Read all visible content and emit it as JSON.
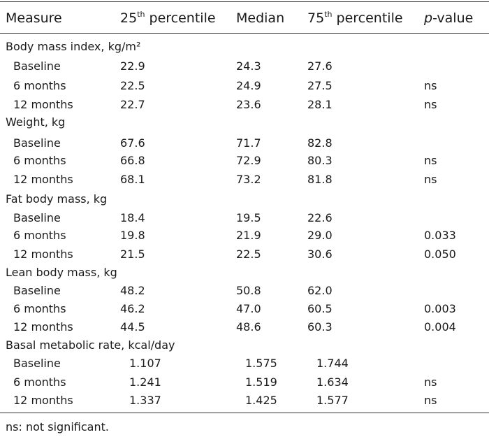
{
  "header": {
    "measure": "Measure",
    "p25_prefix": "25",
    "p25_sup": "th",
    "p25_suffix": " percentile",
    "median": "Median",
    "p75_prefix": "75",
    "p75_sup": "th",
    "p75_suffix": " percentile",
    "pvalue_italic": "p",
    "pvalue_suffix": "-value"
  },
  "groups": [
    {
      "title": "Body mass index, kg/m²",
      "rows": [
        {
          "label": "Baseline",
          "p25": "22.9",
          "median": "24.3",
          "p75": "27.6",
          "p": ""
        },
        {
          "label": "6 months",
          "p25": "22.5",
          "median": "24.9",
          "p75": "27.5",
          "p": "ns"
        },
        {
          "label": "12 months",
          "p25": "22.7",
          "median": "23.6",
          "p75": "28.1",
          "p": "ns"
        }
      ]
    },
    {
      "title": "Weight, kg",
      "rows": [
        {
          "label": "Baseline",
          "p25": "67.6",
          "median": "71.7",
          "p75": "82.8",
          "p": ""
        },
        {
          "label": "6 months",
          "p25": "66.8",
          "median": "72.9",
          "p75": "80.3",
          "p": "ns"
        },
        {
          "label": "12 months",
          "p25": "68.1",
          "median": "73.2",
          "p75": "81.8",
          "p": "ns"
        }
      ]
    },
    {
      "title": "Fat body mass, kg",
      "rows": [
        {
          "label": "Baseline",
          "p25": "18.4",
          "median": "19.5",
          "p75": "22.6",
          "p": ""
        },
        {
          "label": "6 months",
          "p25": "19.8",
          "median": "21.9",
          "p75": "29.0",
          "p": "0.033"
        },
        {
          "label": "12 months",
          "p25": "21.5",
          "median": "22.5",
          "p75": "30.6",
          "p": "0.050"
        }
      ]
    },
    {
      "title": "Lean body mass, kg",
      "rows": [
        {
          "label": "Baseline",
          "p25": "48.2",
          "median": "50.8",
          "p75": "62.0",
          "p": ""
        },
        {
          "label": "6 months",
          "p25": "46.2",
          "median": "47.0",
          "p75": "60.5",
          "p": "0.003"
        },
        {
          "label": "12 months",
          "p25": "44.5",
          "median": "48.6",
          "p75": "60.3",
          "p": "0.004"
        }
      ]
    },
    {
      "title": "Basal metabolic rate, kcal/day",
      "rows": [
        {
          "label": "Baseline",
          "p25": "1.107",
          "median": "1.575",
          "p75": "1.744",
          "p": ""
        },
        {
          "label": "6 months",
          "p25": "1.241",
          "median": "1.519",
          "p75": "1.634",
          "p": "ns"
        },
        {
          "label": "12 months",
          "p25": "1.337",
          "median": "1.425",
          "p75": "1.577",
          "p": "ns"
        }
      ]
    }
  ],
  "footnote": "ns: not significant."
}
